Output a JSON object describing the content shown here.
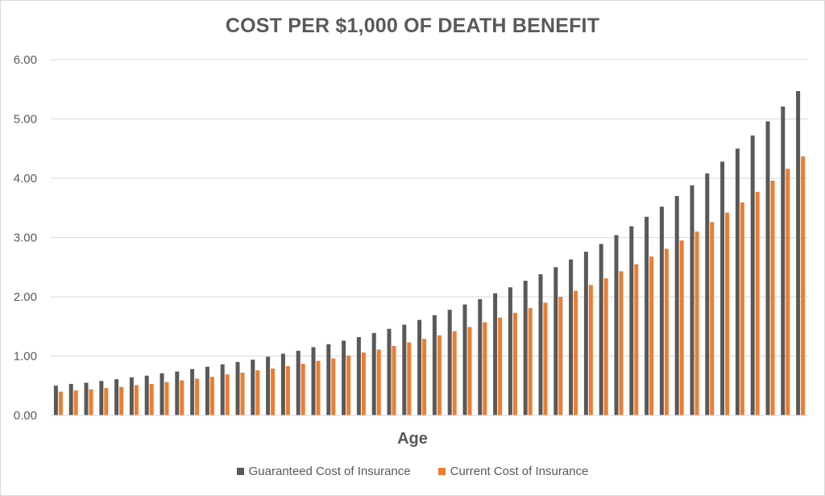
{
  "chart_data": {
    "type": "bar",
    "title": "COST PER $1,000 OF DEATH BENEFIT",
    "xlabel": "Age",
    "ylabel": "",
    "ylim": [
      0,
      6
    ],
    "yticks": [
      "0.00",
      "1.00",
      "2.00",
      "3.00",
      "4.00",
      "5.00",
      "6.00"
    ],
    "grid": true,
    "legend_position": "bottom",
    "colors": {
      "guaranteed": "#595959",
      "current": "#ed7d31"
    },
    "series": [
      {
        "name": "Guaranteed Cost of Insurance",
        "values": [
          0.5,
          0.53,
          0.55,
          0.58,
          0.61,
          0.64,
          0.67,
          0.71,
          0.74,
          0.78,
          0.82,
          0.86,
          0.9,
          0.94,
          0.99,
          1.04,
          1.09,
          1.15,
          1.2,
          1.26,
          1.32,
          1.39,
          1.46,
          1.53,
          1.61,
          1.69,
          1.78,
          1.87,
          1.96,
          2.06,
          2.16,
          2.27,
          2.38,
          2.5,
          2.63,
          2.76,
          2.89,
          3.04,
          3.19,
          3.35,
          3.52,
          3.7,
          3.88,
          4.08,
          4.28,
          4.5,
          4.72,
          4.96,
          5.21,
          5.47
        ]
      },
      {
        "name": "Current Cost of Insurance",
        "values": [
          0.4,
          0.42,
          0.44,
          0.46,
          0.48,
          0.51,
          0.53,
          0.56,
          0.59,
          0.62,
          0.65,
          0.69,
          0.72,
          0.76,
          0.79,
          0.83,
          0.87,
          0.92,
          0.96,
          1.01,
          1.06,
          1.11,
          1.17,
          1.23,
          1.29,
          1.35,
          1.42,
          1.49,
          1.57,
          1.65,
          1.73,
          1.81,
          1.9,
          2.0,
          2.1,
          2.2,
          2.31,
          2.43,
          2.55,
          2.68,
          2.81,
          2.95,
          3.1,
          3.26,
          3.42,
          3.59,
          3.77,
          3.96,
          4.16,
          4.37
        ]
      }
    ]
  }
}
